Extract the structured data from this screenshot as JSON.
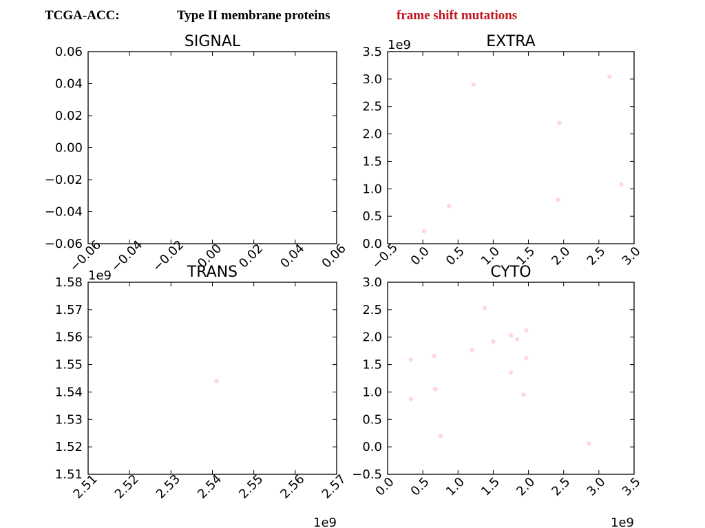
{
  "header": {
    "dataset": "TCGA-ACC:",
    "protein_type": "Type II membrane proteins",
    "mutation_type": "frame shift mutations",
    "mutation_color": "#c0161d"
  },
  "point_color": "#ffd8dc",
  "chart_data": [
    {
      "type": "scatter",
      "title": "SIGNAL",
      "xlabel": "",
      "ylabel": "",
      "xlim": [
        -0.06,
        0.06
      ],
      "ylim": [
        -0.06,
        0.06
      ],
      "x_ticks": [
        "−0.06",
        "−0.04",
        "−0.02",
        "0.00",
        "0.02",
        "0.04",
        "0.06"
      ],
      "y_ticks": [
        "0.06",
        "0.04",
        "0.02",
        "0.00",
        "−0.02",
        "−0.04",
        "−0.06"
      ],
      "x_offset": "",
      "y_offset": "",
      "points": []
    },
    {
      "type": "scatter",
      "title": "EXTRA",
      "xlabel": "",
      "ylabel": "",
      "xlim": [
        -0.5,
        3.0
      ],
      "ylim": [
        0.0,
        3.5
      ],
      "x_ticks": [
        "−0.5",
        "0.0",
        "0.5",
        "1.0",
        "1.5",
        "2.0",
        "2.5",
        "3.0"
      ],
      "y_ticks": [
        "3.5",
        "3.0",
        "2.5",
        "2.0",
        "1.5",
        "1.0",
        "0.5",
        "0.0"
      ],
      "x_offset": "1e9",
      "y_offset": "1e9",
      "points": [
        [
          0.02,
          0.23
        ],
        [
          0.37,
          0.69
        ],
        [
          0.72,
          2.9
        ],
        [
          1.92,
          0.8
        ],
        [
          1.94,
          2.2
        ],
        [
          2.65,
          3.04
        ],
        [
          2.82,
          1.08
        ]
      ]
    },
    {
      "type": "scatter",
      "title": "TRANS",
      "xlabel": "",
      "ylabel": "",
      "xlim": [
        2.51,
        2.57
      ],
      "ylim": [
        1.51,
        1.58
      ],
      "x_ticks": [
        "2.51",
        "2.52",
        "2.53",
        "2.54",
        "2.55",
        "2.56",
        "2.57"
      ],
      "y_ticks": [
        "1.58",
        "1.57",
        "1.56",
        "1.55",
        "1.54",
        "1.53",
        "1.52",
        "1.51"
      ],
      "x_offset": "1e9",
      "y_offset": "1e9",
      "points": [
        [
          2.541,
          1.544
        ]
      ]
    },
    {
      "type": "scatter",
      "title": "CYTO",
      "xlabel": "",
      "ylabel": "",
      "xlim": [
        0.0,
        3.5
      ],
      "ylim": [
        -0.5,
        3.0
      ],
      "x_ticks": [
        "0.0",
        "0.5",
        "1.0",
        "1.5",
        "2.0",
        "2.5",
        "3.0",
        "3.5"
      ],
      "y_ticks": [
        "3.0",
        "2.5",
        "2.0",
        "1.5",
        "1.0",
        "0.5",
        "0.0",
        "−0.5"
      ],
      "x_offset": "1e9",
      "y_offset": "",
      "points": [
        [
          0.33,
          1.59
        ],
        [
          0.33,
          0.87
        ],
        [
          0.66,
          1.66
        ],
        [
          0.67,
          1.06
        ],
        [
          0.68,
          1.05
        ],
        [
          0.75,
          0.2
        ],
        [
          1.2,
          1.77
        ],
        [
          1.38,
          2.53
        ],
        [
          1.5,
          1.92
        ],
        [
          1.75,
          2.03
        ],
        [
          1.75,
          1.35
        ],
        [
          1.84,
          1.96
        ],
        [
          1.93,
          0.95
        ],
        [
          1.97,
          2.12
        ],
        [
          1.97,
          1.62
        ],
        [
          2.86,
          0.06
        ]
      ]
    }
  ]
}
